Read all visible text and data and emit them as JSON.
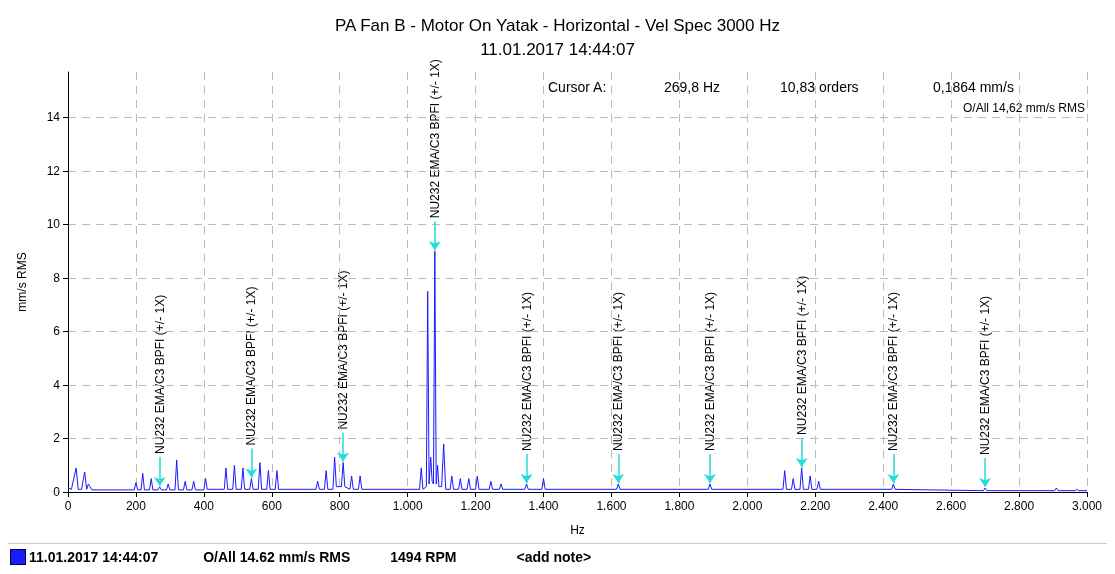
{
  "chart_data": {
    "type": "line",
    "title": "PA Fan B - Motor On Yatak - Horizontal - Vel Spec 3000 Hz",
    "subtitle": "11.01.2017 14:44:07",
    "xlabel": "Hz",
    "ylabel": "mm/s RMS",
    "series": [
      {
        "color": "#1a1aff",
        "x": [
          0,
          10,
          24,
          30,
          40,
          49,
          55,
          60,
          70,
          195,
          200,
          205,
          215,
          220,
          225,
          240,
          245,
          250,
          265,
          270,
          275,
          290,
          295,
          300,
          315,
          320,
          325,
          340,
          345,
          350,
          365,
          370,
          375,
          400,
          405,
          410,
          460,
          465,
          470,
          485,
          490,
          495,
          510,
          515,
          520,
          535,
          540,
          545,
          560,
          565,
          570,
          585,
          590,
          595,
          610,
          615,
          620,
          730,
          735,
          740,
          755,
          760,
          765,
          780,
          785,
          790,
          805,
          810,
          815,
          830,
          835,
          840,
          855,
          860,
          865,
          1000,
          1035,
          1040,
          1045,
          1055,
          1059,
          1063,
          1068,
          1072,
          1076,
          1080,
          1084,
          1088,
          1092,
          1100,
          1106,
          1112,
          1125,
          1130,
          1135,
          1150,
          1155,
          1160,
          1175,
          1180,
          1185,
          1200,
          1205,
          1210,
          1240,
          1245,
          1250,
          1270,
          1275,
          1280,
          1345,
          1350,
          1355,
          1395,
          1400,
          1405,
          1615,
          1620,
          1625,
          1885,
          1890,
          1895,
          2105,
          2110,
          2115,
          2130,
          2135,
          2140,
          2155,
          2160,
          2165,
          2180,
          2185,
          2190,
          2205,
          2210,
          2215,
          2425,
          2430,
          2435,
          2695,
          2700,
          2705,
          2905,
          2910,
          2915,
          2965,
          2970,
          2975,
          3000
        ],
        "values": [
          0.15,
          0.1,
          0.9,
          0.1,
          0.1,
          0.75,
          0.1,
          0.3,
          0.08,
          0.08,
          0.35,
          0.08,
          0.08,
          0.7,
          0.08,
          0.08,
          0.5,
          0.08,
          0.08,
          0.19,
          0.08,
          0.08,
          0.3,
          0.08,
          0.08,
          1.2,
          0.08,
          0.08,
          0.4,
          0.08,
          0.08,
          0.4,
          0.08,
          0.08,
          0.5,
          0.1,
          0.1,
          0.9,
          0.1,
          0.1,
          1.0,
          0.1,
          0.1,
          0.9,
          0.1,
          0.1,
          0.5,
          0.1,
          0.1,
          1.1,
          0.1,
          0.1,
          0.8,
          0.1,
          0.1,
          0.8,
          0.1,
          0.1,
          0.4,
          0.1,
          0.1,
          0.8,
          0.1,
          0.1,
          1.3,
          0.2,
          0.2,
          1.1,
          0.2,
          0.1,
          0.6,
          0.1,
          0.1,
          0.6,
          0.1,
          0.1,
          0.1,
          0.9,
          0.1,
          0.2,
          7.5,
          0.3,
          1.3,
          0.4,
          0.3,
          9.0,
          0.3,
          1.0,
          0.2,
          0.2,
          1.8,
          0.1,
          0.1,
          0.6,
          0.1,
          0.1,
          0.5,
          0.1,
          0.1,
          0.5,
          0.1,
          0.1,
          0.6,
          0.1,
          0.1,
          0.4,
          0.1,
          0.1,
          0.3,
          0.1,
          0.1,
          0.3,
          0.1,
          0.1,
          0.5,
          0.1,
          0.1,
          0.3,
          0.1,
          0.1,
          0.3,
          0.1,
          0.1,
          0.8,
          0.1,
          0.1,
          0.5,
          0.1,
          0.1,
          0.9,
          0.1,
          0.1,
          0.6,
          0.1,
          0.1,
          0.4,
          0.1,
          0.1,
          0.3,
          0.1,
          0.05,
          0.15,
          0.05,
          0.05,
          0.15,
          0.05,
          0.05,
          0.1,
          0.05,
          0.05
        ]
      }
    ],
    "xlim": [
      0,
      3000
    ],
    "xticks": [
      0,
      200,
      400,
      600,
      800,
      {
        "value": 1000,
        "label": "1.000"
      },
      {
        "value": 1200,
        "label": "1.200"
      },
      {
        "value": 1400,
        "label": "1.400"
      },
      {
        "value": 1600,
        "label": "1.600"
      },
      {
        "value": 1800,
        "label": "1.800"
      },
      {
        "value": 2000,
        "label": "2.000"
      },
      {
        "value": 2200,
        "label": "2.200"
      },
      {
        "value": 2400,
        "label": "2.400"
      },
      {
        "value": 2600,
        "label": "2.600"
      },
      {
        "value": 2800,
        "label": "2.800"
      },
      {
        "value": 3000,
        "label": "3.000"
      }
    ],
    "ylim": [
      0,
      15.7
    ],
    "yticks": [
      0,
      2,
      4,
      6,
      8,
      10,
      12,
      14
    ],
    "grid": true,
    "marker": "none",
    "line_style": "solid",
    "annotations": [
      {
        "text": "NU232 EMA/C3 BPFI (+/- 1X)",
        "x": 270,
        "y": 0.19
      },
      {
        "text": "NU232 EMA/C3 BPFI (+/- 1X)",
        "x": 540,
        "y": 0.5
      },
      {
        "text": "NU232 EMA/C3 BPFI (+/- 1X)",
        "x": 810,
        "y": 1.1
      },
      {
        "text": "NU232 EMA/C3 BPFI (+/- 1X)",
        "x": 1080,
        "y": 9.0
      },
      {
        "text": "NU232 EMA/C3 BPFI (+/- 1X)",
        "x": 1350,
        "y": 0.3
      },
      {
        "text": "NU232 EMA/C3 BPFI (+/- 1X)",
        "x": 1620,
        "y": 0.3
      },
      {
        "text": "NU232 EMA/C3 BPFI (+/- 1X)",
        "x": 1890,
        "y": 0.3
      },
      {
        "text": "NU232 EMA/C3 BPFI (+/- 1X)",
        "x": 2160,
        "y": 0.9
      },
      {
        "text": "NU232 EMA/C3 BPFI (+/- 1X)",
        "x": 2430,
        "y": 0.3
      },
      {
        "text": "NU232 EMA/C3 BPFI (+/- 1X)",
        "x": 2700,
        "y": 0.15
      },
      "Cursor A:",
      "269,8 Hz",
      "10,83 orders",
      "0,1864 mm/s",
      "O/All 14,62 mm/s RMS",
      "11.01.2017 14:44:07",
      "O/All 14.62 mm/s RMS",
      "1494 RPM",
      "<add note>"
    ]
  }
}
